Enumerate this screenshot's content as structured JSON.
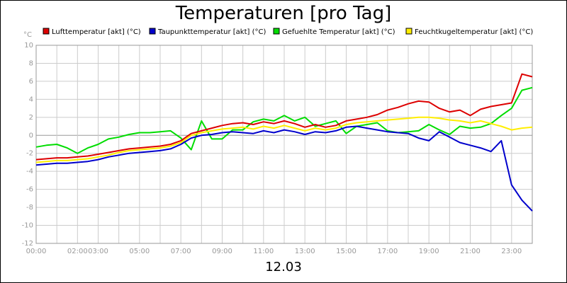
{
  "chart_data": {
    "type": "line",
    "title": "Temperaturen [pro Tag]",
    "date_label": "12.03",
    "yunit": "°C",
    "ylim": [
      -12,
      10
    ],
    "yticks": [
      10,
      8,
      6,
      4,
      2,
      0,
      -2,
      -4,
      -6,
      -8,
      -10,
      -12
    ],
    "xlim": [
      0,
      24
    ],
    "xticks": [
      {
        "h": 0,
        "label": "00:00"
      },
      {
        "h": 2,
        "label": "02:00"
      },
      {
        "h": 3,
        "label": "03:00"
      },
      {
        "h": 5,
        "label": "05:00"
      },
      {
        "h": 7,
        "label": "07:00"
      },
      {
        "h": 9,
        "label": "09:00"
      },
      {
        "h": 11,
        "label": "11:00"
      },
      {
        "h": 13,
        "label": "13:00"
      },
      {
        "h": 15,
        "label": "15:00"
      },
      {
        "h": 17,
        "label": "17:00"
      },
      {
        "h": 19,
        "label": "19:00"
      },
      {
        "h": 21,
        "label": "21:00"
      },
      {
        "h": 23,
        "label": "23:00"
      }
    ],
    "grid": true,
    "legend_position": "top",
    "series": [
      {
        "name": "Lufttemperatur [akt] (°C)",
        "color": "#dd0000",
        "x": [
          0,
          0.5,
          1,
          1.5,
          2,
          2.5,
          3,
          3.5,
          4,
          4.5,
          5,
          5.5,
          6,
          6.5,
          7,
          7.5,
          8,
          8.5,
          9,
          9.5,
          10,
          10.5,
          11,
          11.5,
          12,
          12.5,
          13,
          13.5,
          14,
          14.5,
          15,
          15.5,
          16,
          16.5,
          17,
          17.5,
          18,
          18.5,
          19,
          19.5,
          20,
          20.5,
          21,
          21.5,
          22,
          22.5,
          23,
          23.5,
          24
        ],
        "y": [
          -2.7,
          -2.6,
          -2.5,
          -2.5,
          -2.4,
          -2.3,
          -2.1,
          -1.9,
          -1.7,
          -1.5,
          -1.4,
          -1.3,
          -1.2,
          -1.0,
          -0.6,
          0.2,
          0.5,
          0.8,
          1.1,
          1.3,
          1.4,
          1.2,
          1.5,
          1.3,
          1.6,
          1.3,
          0.9,
          1.2,
          0.9,
          1.1,
          1.6,
          1.8,
          2.0,
          2.3,
          2.8,
          3.1,
          3.5,
          3.8,
          3.7,
          3.0,
          2.6,
          2.8,
          2.2,
          2.9,
          3.2,
          3.4,
          3.6,
          6.8,
          6.5
        ]
      },
      {
        "name": "Taupunkttemperatur [akt] (°C)",
        "color": "#0000cc",
        "x": [
          0,
          0.5,
          1,
          1.5,
          2,
          2.5,
          3,
          3.5,
          4,
          4.5,
          5,
          5.5,
          6,
          6.5,
          7,
          7.5,
          8,
          8.5,
          9,
          9.5,
          10,
          10.5,
          11,
          11.5,
          12,
          12.5,
          13,
          13.5,
          14,
          14.5,
          15,
          15.5,
          16,
          16.5,
          17,
          17.5,
          18,
          18.5,
          19,
          19.5,
          20,
          20.5,
          21,
          21.5,
          22,
          22.5,
          23,
          23.5,
          24
        ],
        "y": [
          -3.3,
          -3.2,
          -3.1,
          -3.1,
          -3.0,
          -2.9,
          -2.7,
          -2.4,
          -2.2,
          -2.0,
          -1.9,
          -1.8,
          -1.7,
          -1.5,
          -1.0,
          -0.3,
          0.0,
          0.1,
          0.3,
          0.4,
          0.3,
          0.2,
          0.5,
          0.3,
          0.6,
          0.4,
          0.1,
          0.4,
          0.3,
          0.5,
          0.9,
          1.0,
          0.8,
          0.6,
          0.4,
          0.3,
          0.2,
          -0.3,
          -0.6,
          0.4,
          -0.2,
          -0.8,
          -1.1,
          -1.4,
          -1.8,
          -0.6,
          -5.5,
          -7.2,
          -8.4
        ]
      },
      {
        "name": "Gefuehlte Temperatur [akt] (°C)",
        "color": "#00dd00",
        "x": [
          0,
          0.5,
          1,
          1.5,
          2,
          2.5,
          3,
          3.5,
          4,
          4.5,
          5,
          5.5,
          6,
          6.5,
          7,
          7.5,
          8,
          8.5,
          9,
          9.5,
          10,
          10.5,
          11,
          11.5,
          12,
          12.5,
          13,
          13.5,
          14,
          14.5,
          15,
          15.5,
          16,
          16.5,
          17,
          17.5,
          18,
          18.5,
          19,
          19.5,
          20,
          20.5,
          21,
          21.5,
          22,
          22.5,
          23,
          23.5,
          24
        ],
        "y": [
          -1.3,
          -1.1,
          -1.0,
          -1.4,
          -2.0,
          -1.4,
          -1.0,
          -0.4,
          -0.2,
          0.1,
          0.3,
          0.3,
          0.4,
          0.5,
          -0.3,
          -1.6,
          1.6,
          -0.4,
          -0.4,
          0.6,
          0.6,
          1.5,
          1.8,
          1.6,
          2.2,
          1.6,
          2.0,
          1.0,
          1.3,
          1.6,
          0.2,
          1.0,
          1.2,
          1.4,
          0.5,
          0.3,
          0.4,
          0.5,
          1.2,
          0.6,
          0.1,
          1.0,
          0.8,
          0.9,
          1.3,
          2.2,
          3.0,
          5.0,
          5.3
        ]
      },
      {
        "name": "Feuchtkugeltemperatur [akt] (°C)",
        "color": "#ffee00",
        "x": [
          0,
          0.5,
          1,
          1.5,
          2,
          2.5,
          3,
          3.5,
          4,
          4.5,
          5,
          5.5,
          6,
          6.5,
          7,
          7.5,
          8,
          8.5,
          9,
          9.5,
          10,
          10.5,
          11,
          11.5,
          12,
          12.5,
          13,
          13.5,
          14,
          14.5,
          15,
          15.5,
          16,
          16.5,
          17,
          17.5,
          18,
          18.5,
          19,
          19.5,
          20,
          20.5,
          21,
          21.5,
          22,
          22.5,
          23,
          23.5,
          24
        ],
        "y": [
          -3.0,
          -2.9,
          -2.8,
          -2.8,
          -2.7,
          -2.6,
          -2.4,
          -2.2,
          -1.9,
          -1.7,
          -1.6,
          -1.5,
          -1.4,
          -1.2,
          -0.8,
          0.0,
          0.3,
          0.5,
          0.7,
          0.8,
          0.9,
          0.7,
          1.0,
          0.8,
          1.1,
          0.8,
          0.5,
          0.8,
          0.6,
          0.8,
          1.2,
          1.4,
          1.5,
          1.6,
          1.7,
          1.8,
          1.9,
          2.0,
          2.0,
          1.9,
          1.7,
          1.6,
          1.4,
          1.6,
          1.3,
          1.0,
          0.6,
          0.8,
          0.9
        ]
      }
    ]
  }
}
